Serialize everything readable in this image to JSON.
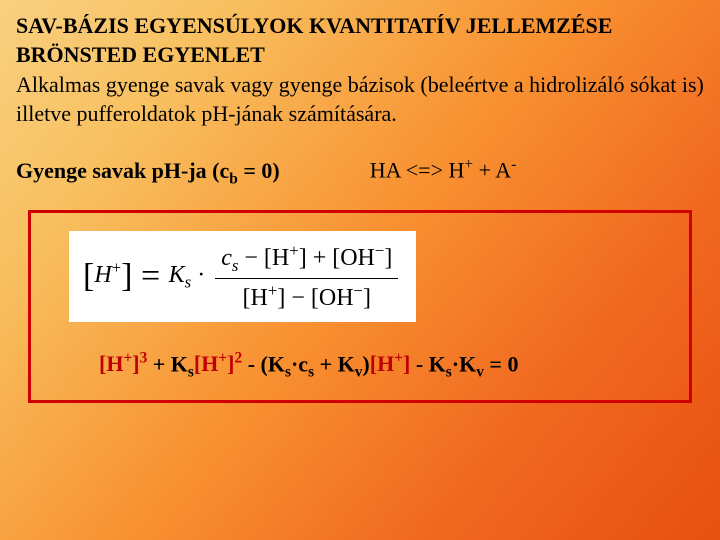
{
  "title_line1": "SAV-BÁZIS EGYENSÚLYOK KVANTITATÍV JELLEMZÉSE",
  "title_line2": "BRÖNSTED EGYENLET",
  "paragraph": "Alkalmas gyenge savak vagy gyenge bázisok (beleértve a hidrolizáló sókat is) illetve pufferoldatok pH-jának számítására.",
  "section_label_pre": "Gyenge savak pH-ja (c",
  "section_label_sub": "b",
  "section_label_post": " = 0)",
  "reaction_pre": "HA <=> H",
  "reaction_sup1": "+",
  "reaction_mid": " + A",
  "reaction_sup2": "-",
  "main_eq": {
    "lhs_open": "[",
    "lhs_H": "H",
    "lhs_sup": "+",
    "lhs_close": "] = ",
    "Ks_pre": "K",
    "Ks_sub": "s",
    "mult": " · ",
    "num_pre": "c",
    "num_sub": "s",
    "num_mid": " − [H",
    "num_sup1": "+",
    "num_mid2": "] + [OH",
    "num_sup2": "−",
    "num_end": "]",
    "den_pre": "[H",
    "den_sup1": "+",
    "den_mid": "] − [OH",
    "den_sup2": "−",
    "den_end": "]"
  },
  "cubic": {
    "t1a": "[H",
    "t1sup": "+",
    "t1b": "]",
    "t1exp": "3",
    "p1": " + K",
    "p1sub": "s",
    "t2a": "[H",
    "t2sup": "+",
    "t2b": "]",
    "t2exp": "2",
    "p2a": " - (K",
    "p2asub": "s",
    "p2b": "·c",
    "p2bsub": "s",
    "p2c": " + K",
    "p2csub": "v",
    "p2d": ")",
    "t3a": "[H",
    "t3sup": "+",
    "t3b": "]",
    "p3a": " - K",
    "p3asub": "s",
    "p3b": "·K",
    "p3bsub": "v",
    "p3c": " = 0"
  }
}
